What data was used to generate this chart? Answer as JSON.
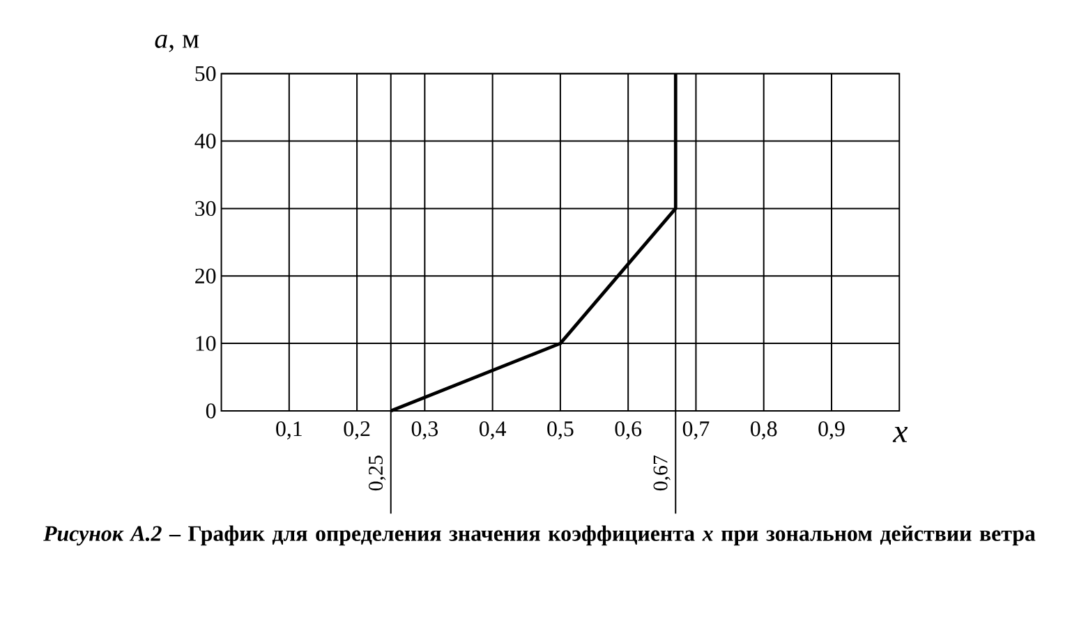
{
  "chart_data": {
    "type": "line",
    "title": "*Рисунок А.2* – График для определения значения коэффициента *x* при зональном действии ветра",
    "xlabel": "x",
    "ylabel": "*a*, м",
    "xlim": [
      0,
      1
    ],
    "ylim": [
      0,
      50
    ],
    "xticks": [
      {
        "value": 0.1,
        "label": "0,1"
      },
      {
        "value": 0.2,
        "label": "0,2"
      },
      {
        "value": 0.3,
        "label": "0,3"
      },
      {
        "value": 0.4,
        "label": "0,4"
      },
      {
        "value": 0.5,
        "label": "0,5"
      },
      {
        "value": 0.6,
        "label": "0,6"
      },
      {
        "value": 0.7,
        "label": "0,7"
      },
      {
        "value": 0.8,
        "label": "0,8"
      },
      {
        "value": 0.9,
        "label": "0,9"
      }
    ],
    "yticks": [
      0,
      10,
      20,
      30,
      40,
      50
    ],
    "grid": true,
    "marker": "none",
    "line_style": "solid",
    "ref_lines": [
      {
        "axis": "x",
        "value": 0.25,
        "label": "0,25"
      },
      {
        "axis": "x",
        "value": 0.67,
        "label": "0,67"
      }
    ],
    "series": [
      {
        "color": "#000000",
        "x": [
          0.25,
          0.5,
          0.67,
          0.67
        ],
        "values": [
          0,
          10,
          30,
          50
        ]
      }
    ]
  }
}
